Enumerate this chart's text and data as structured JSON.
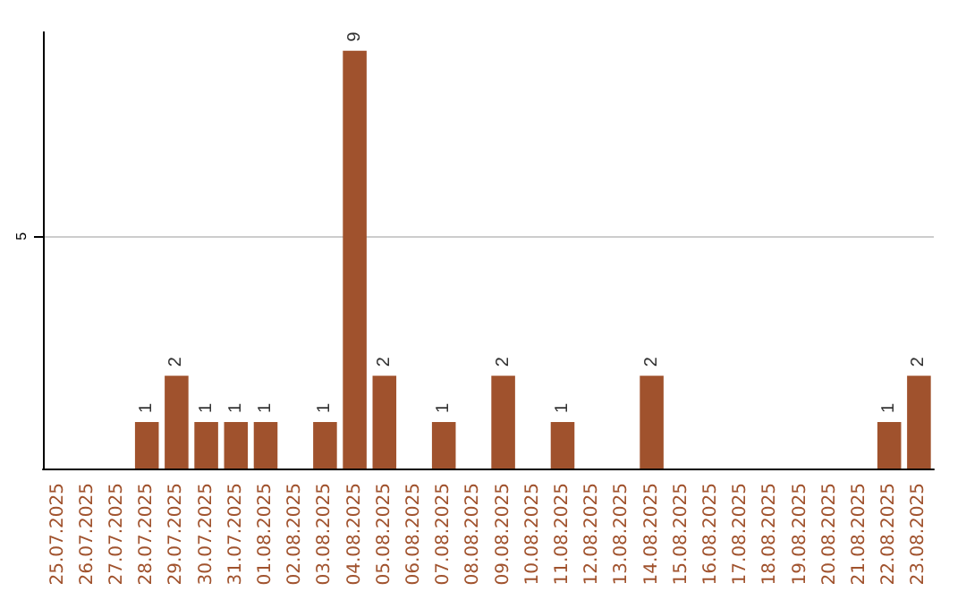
{
  "chart_data": {
    "type": "bar",
    "categories": [
      "25.07.2025",
      "26.07.2025",
      "27.07.2025",
      "28.07.2025",
      "29.07.2025",
      "30.07.2025",
      "31.07.2025",
      "01.08.2025",
      "02.08.2025",
      "03.08.2025",
      "04.08.2025",
      "05.08.2025",
      "06.08.2025",
      "07.08.2025",
      "08.08.2025",
      "09.08.2025",
      "10.08.2025",
      "11.08.2025",
      "12.08.2025",
      "13.08.2025",
      "14.08.2025",
      "15.08.2025",
      "16.08.2025",
      "17.08.2025",
      "18.08.2025",
      "19.08.2025",
      "20.08.2025",
      "21.08.2025",
      "22.08.2025",
      "23.08.2025"
    ],
    "values": [
      0,
      0,
      0,
      1,
      2,
      1,
      1,
      1,
      0,
      1,
      9,
      2,
      0,
      1,
      0,
      2,
      0,
      1,
      0,
      0,
      2,
      0,
      0,
      0,
      0,
      0,
      0,
      0,
      1,
      2
    ],
    "value_labels": [
      null,
      null,
      null,
      "1",
      "2",
      "1",
      "1",
      "1",
      null,
      "1",
      "9",
      "2",
      null,
      "1",
      null,
      "2",
      null,
      "1",
      null,
      null,
      "2",
      null,
      null,
      null,
      null,
      null,
      null,
      null,
      "1",
      "2"
    ],
    "color": "#a0522d",
    "ylim": [
      0,
      9.4
    ],
    "yticks": [
      5
    ],
    "grid": "y"
  }
}
